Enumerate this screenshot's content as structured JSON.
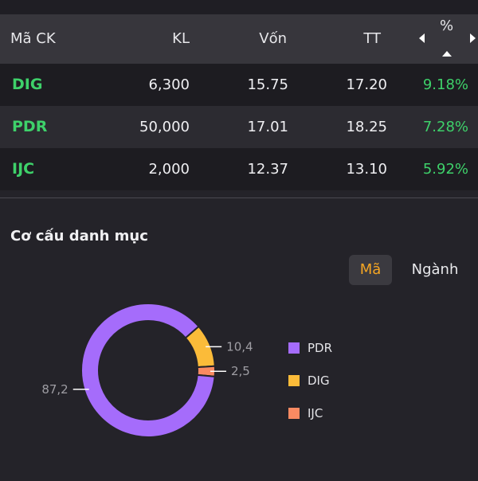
{
  "table": {
    "headers": {
      "code": "Mã CK",
      "kl": "KL",
      "von": "Vốn",
      "tt": "TT",
      "pct": "%"
    },
    "rows": [
      {
        "code": "DIG",
        "kl": "6,300",
        "von": "15.75",
        "tt": "17.20",
        "pct": "9.18%"
      },
      {
        "code": "PDR",
        "kl": "50,000",
        "von": "17.01",
        "tt": "18.25",
        "pct": "7.28%"
      },
      {
        "code": "IJC",
        "kl": "2,000",
        "von": "12.37",
        "tt": "13.10",
        "pct": "5.92%"
      }
    ]
  },
  "portfolio": {
    "title": "Cơ cấu danh mục",
    "tabs": [
      {
        "label": "Mã",
        "active": true
      },
      {
        "label": "Ngành",
        "active": false
      }
    ]
  },
  "chart_data": {
    "type": "pie",
    "categories": [
      "PDR",
      "DIG",
      "IJC"
    ],
    "values": [
      87.2,
      10.4,
      2.5
    ],
    "value_labels": [
      "87,2",
      "10,4",
      "2,5"
    ],
    "colors": [
      "#a56cfb",
      "#fbbb39",
      "#f98a62"
    ],
    "legend": [
      "PDR",
      "DIG",
      "IJC"
    ],
    "legend_position": "right",
    "donut": true
  },
  "colors": {
    "positive": "#3ed16a",
    "accent": "#f5a623",
    "background": "#242329",
    "header": "#37363c"
  }
}
